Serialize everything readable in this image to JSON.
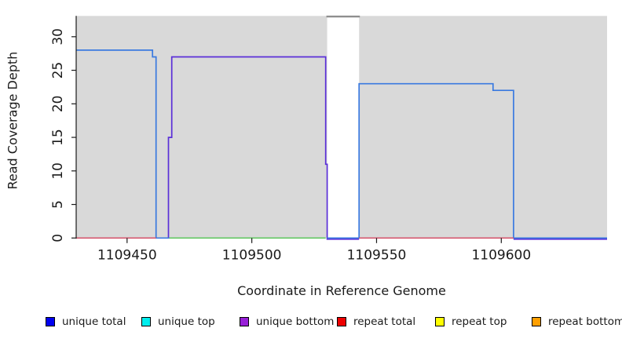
{
  "chart_data": {
    "type": "line",
    "subtype": "step-coverage",
    "title": "",
    "xlabel": "Coordinate in Reference Genome",
    "ylabel": "Read Coverage Depth",
    "xlim": [
      1109429.6,
      1109642.4
    ],
    "ylim": [
      0,
      33.1
    ],
    "x_ticks": [
      1109450,
      1109500,
      1109550,
      1109600
    ],
    "y_ticks": [
      0,
      5,
      10,
      15,
      20,
      25,
      30
    ],
    "grid": false,
    "legend_position": "bottom",
    "plot_background": "#d9d9d9",
    "page_background": "#ffffff",
    "axis_color": "#1a1a1a",
    "masked_region": {
      "x_start": 1109530.2,
      "x_end": 1109543,
      "fill": "#ffffff",
      "cap_color": "#8f8f8f"
    },
    "series": [
      {
        "name": "unique total",
        "color": "#3a7ae0",
        "paths": [
          [
            [
              1109429.6,
              28
            ],
            [
              1109460.2,
              28
            ],
            [
              1109460.2,
              27
            ],
            [
              1109461.6,
              27
            ],
            [
              1109461.6,
              0
            ],
            [
              1109466.9,
              0
            ]
          ],
          [
            [
              1109530.2,
              0
            ],
            [
              1109543,
              0
            ],
            [
              1109543,
              23
            ],
            [
              1109596.7,
              23
            ],
            [
              1109596.7,
              22
            ],
            [
              1109604.9,
              22
            ],
            [
              1109604.9,
              0
            ],
            [
              1109642.4,
              0
            ]
          ]
        ]
      },
      {
        "name": "unique top",
        "color": "#00eeee",
        "paths": []
      },
      {
        "name": "unique bottom",
        "color": "#5a2fd8",
        "paths": [
          [
            [
              1109466.6,
              0
            ],
            [
              1109466.6,
              15
            ],
            [
              1109467.9,
              15
            ],
            [
              1109467.9,
              27
            ],
            [
              1109529.6,
              27
            ],
            [
              1109529.6,
              11
            ],
            [
              1109530.2,
              11
            ],
            [
              1109530.2,
              -0.18
            ],
            [
              1109543,
              -0.18
            ]
          ],
          [
            [
              1109604.9,
              -0.18
            ],
            [
              1109642.4,
              -0.18
            ]
          ]
        ]
      },
      {
        "name": "repeat total",
        "color": "#d5586f",
        "paths": [
          [
            [
              1109429.6,
              0
            ],
            [
              1109461.6,
              0
            ]
          ],
          [
            [
              1109543,
              0
            ],
            [
              1109604.9,
              0
            ]
          ]
        ]
      },
      {
        "name": "repeat top",
        "color": "#ffff00",
        "paths": []
      },
      {
        "name": "repeat bottom",
        "color": "#ff9f00",
        "paths": []
      },
      {
        "name": "overlap baseline green",
        "color": "#63c763",
        "paths": [
          [
            [
              1109466.9,
              0
            ],
            [
              1109529.6,
              0
            ]
          ]
        ]
      }
    ],
    "legend": [
      {
        "label": "unique total",
        "color": "#0000f0"
      },
      {
        "label": "unique top",
        "color": "#00eeee"
      },
      {
        "label": "unique bottom",
        "color": "#9820d8"
      },
      {
        "label": "repeat total",
        "color": "#ee0000"
      },
      {
        "label": "repeat top",
        "color": "#ffff00"
      },
      {
        "label": "repeat bottom",
        "color": "#ff9f00"
      }
    ]
  }
}
